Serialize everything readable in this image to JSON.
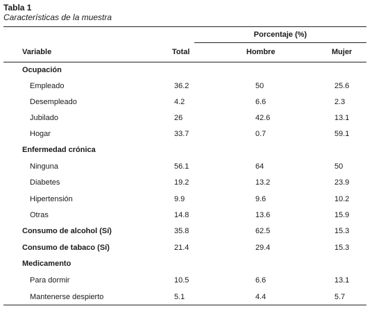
{
  "table": {
    "title": "Tabla 1",
    "subtitle": "Características de la muestra",
    "group_header": "Porcentaje (%)",
    "columns": [
      "Variable",
      "Total",
      "Hombre",
      "Mujer"
    ],
    "rows": [
      {
        "label": "Ocupación",
        "type": "section",
        "total": "",
        "hombre": "",
        "mujer": ""
      },
      {
        "label": "Empleado",
        "type": "item",
        "total": "36.2",
        "hombre": "50",
        "mujer": "25.6"
      },
      {
        "label": "Desempleado",
        "type": "item",
        "total": "4.2",
        "hombre": "6.6",
        "mujer": "2.3"
      },
      {
        "label": "Jubilado",
        "type": "item",
        "total": "26",
        "hombre": "42.6",
        "mujer": "13.1"
      },
      {
        "label": "Hogar",
        "type": "item",
        "total": "33.7",
        "hombre": "0.7",
        "mujer": "59.1"
      },
      {
        "label": "Enfermedad crónica",
        "type": "section",
        "total": "",
        "hombre": "",
        "mujer": ""
      },
      {
        "label": "Ninguna",
        "type": "item",
        "total": "56.1",
        "hombre": "64",
        "mujer": "50"
      },
      {
        "label": "Diabetes",
        "type": "item",
        "total": "19.2",
        "hombre": "13.2",
        "mujer": "23.9"
      },
      {
        "label": "Hipertensión",
        "type": "item",
        "total": "9.9",
        "hombre": "9.6",
        "mujer": "10.2"
      },
      {
        "label": "Otras",
        "type": "item",
        "total": "14.8",
        "hombre": "13.6",
        "mujer": "15.9"
      },
      {
        "label": "Consumo de alcohol (Sí)",
        "type": "summary",
        "total": "35.8",
        "hombre": "62.5",
        "mujer": "15.3"
      },
      {
        "label": "Consumo de tabaco (Sí)",
        "type": "summary",
        "total": "21.4",
        "hombre": "29.4",
        "mujer": "15.3"
      },
      {
        "label": "Medicamento",
        "type": "section",
        "total": "",
        "hombre": "",
        "mujer": ""
      },
      {
        "label": "Para dormir",
        "type": "item",
        "total": "10.5",
        "hombre": "6.6",
        "mujer": "13.1"
      },
      {
        "label": "Mantenerse despierto",
        "type": "item",
        "total": "5.1",
        "hombre": "4.4",
        "mujer": "5.7"
      }
    ]
  }
}
